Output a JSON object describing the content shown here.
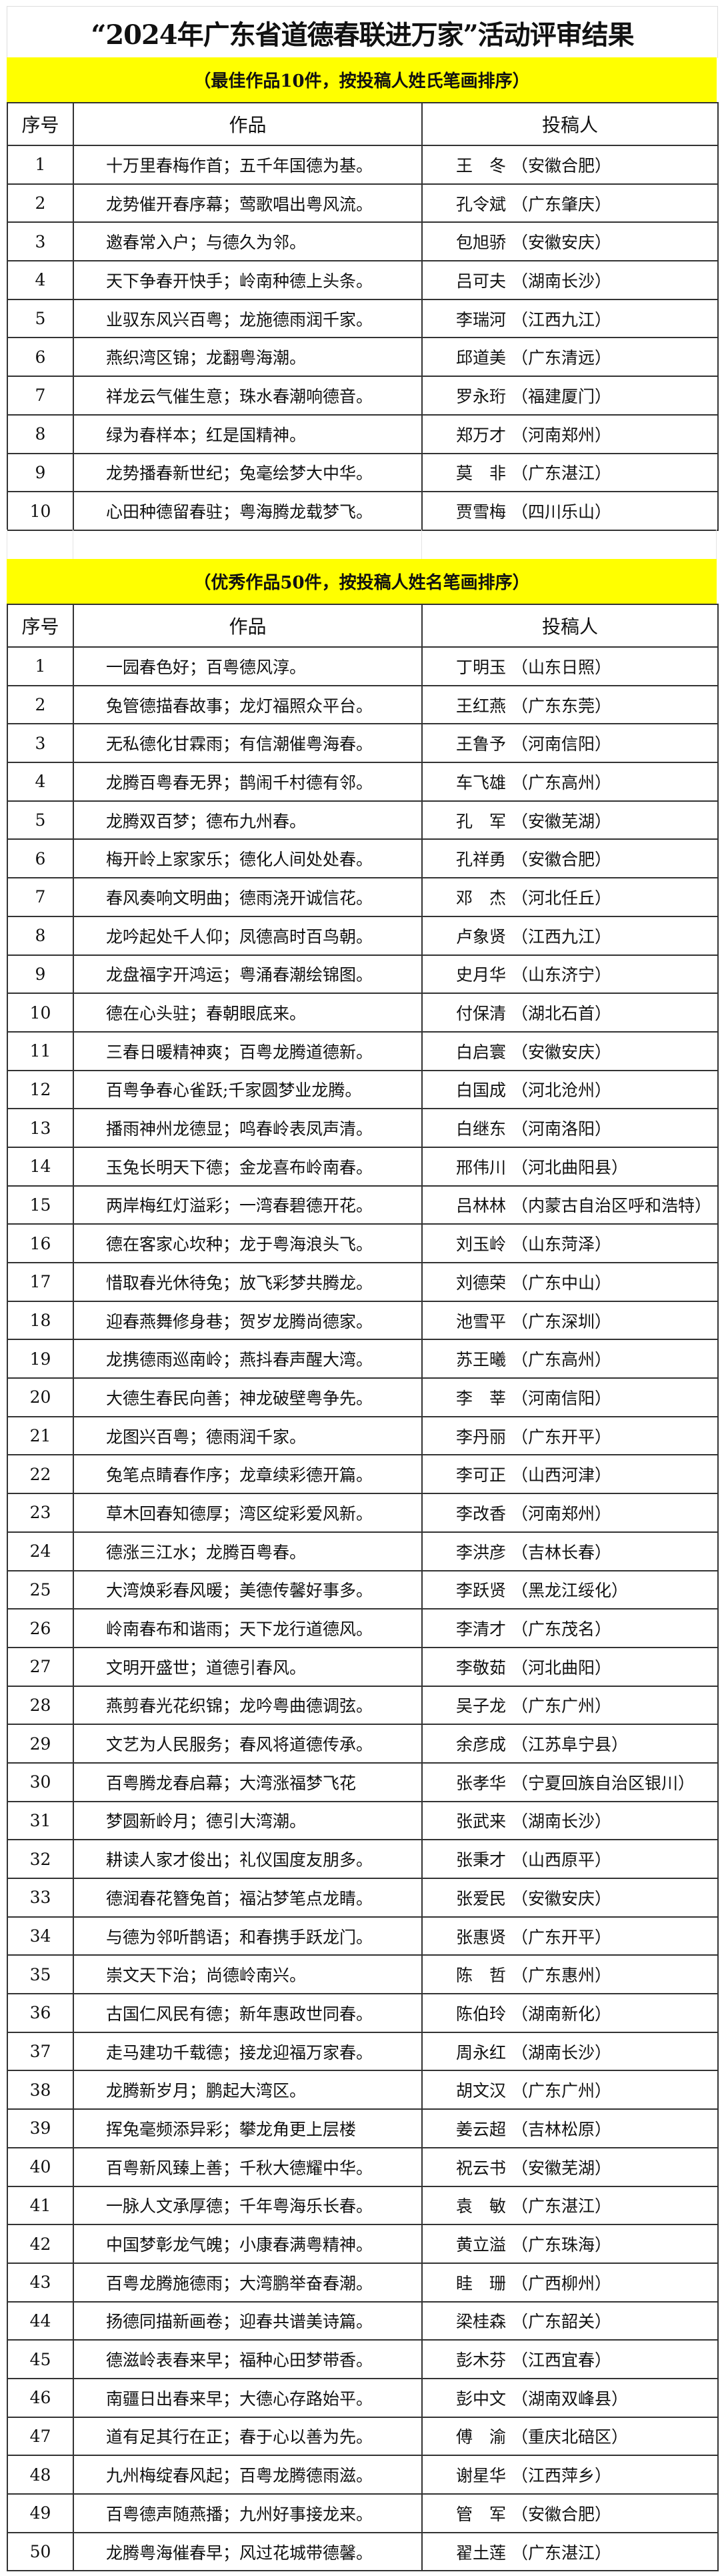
{
  "title": "“2024年广东省道德春联进万家”活动评审结果",
  "headers": {
    "no": "序号",
    "work": "作品",
    "author": "投稿人"
  },
  "colors": {
    "banner": "#ffff00"
  },
  "best": {
    "caption": "（最佳作品10件，按投稿人姓氏笔画排序）",
    "rows": [
      {
        "no": "1",
        "work": "十万里春梅作首；五千年国德为基。",
        "name": "王　冬",
        "region": "安徽合肥"
      },
      {
        "no": "2",
        "work": "龙势催开春序幕；莺歌唱出粤风流。",
        "name": "孔令斌",
        "region": "广东肇庆"
      },
      {
        "no": "3",
        "work": "邀春常入户；与德久为邻。",
        "name": "包旭骄",
        "region": "安徽安庆"
      },
      {
        "no": "4",
        "work": "天下争春开快手；岭南种德上头条。",
        "name": "吕可夫",
        "region": "湖南长沙"
      },
      {
        "no": "5",
        "work": "业驭东风兴百粤；龙施德雨润千家。",
        "name": "李瑞河",
        "region": "江西九江"
      },
      {
        "no": "6",
        "work": "燕织湾区锦；龙翻粤海潮。",
        "name": "邱道美",
        "region": "广东清远"
      },
      {
        "no": "7",
        "work": "祥龙云气催生意；珠水春潮响德音。",
        "name": "罗永珩",
        "region": "福建厦门"
      },
      {
        "no": "8",
        "work": "绿为春样本；红是国精神。",
        "name": "郑万才",
        "region": "河南郑州"
      },
      {
        "no": "9",
        "work": "龙势播春新世纪；兔毫绘梦大中华。",
        "name": "莫　非",
        "region": "广东湛江"
      },
      {
        "no": "10",
        "work": "心田种德留春驻；粤海腾龙载梦飞。",
        "name": "贾雪梅",
        "region": "四川乐山"
      }
    ]
  },
  "excellent": {
    "caption": "（优秀作品50件，按投稿人姓名笔画排序）",
    "rows": [
      {
        "no": "1",
        "work": "一园春色好；百粤德风淳。",
        "name": "丁明玉",
        "region": "山东日照"
      },
      {
        "no": "2",
        "work": "兔管德描春故事；龙灯福照众平台。",
        "name": "王红燕",
        "region": "广东东莞"
      },
      {
        "no": "3",
        "work": "无私德化甘霖雨；有信潮催粤海春。",
        "name": "王鲁予",
        "region": "河南信阳"
      },
      {
        "no": "4",
        "work": "龙腾百粤春无界；鹊闹千村德有邻。",
        "name": "车飞雄",
        "region": "广东高州"
      },
      {
        "no": "5",
        "work": "龙腾双百梦；德布九州春。",
        "name": "孔　军",
        "region": "安徽芜湖"
      },
      {
        "no": "6",
        "work": "梅开岭上家家乐；德化人间处处春。",
        "name": "孔祥勇",
        "region": "安徽合肥"
      },
      {
        "no": "7",
        "work": "春风奏响文明曲；德雨浇开诚信花。",
        "name": "邓　杰",
        "region": "河北任丘"
      },
      {
        "no": "8",
        "work": "龙吟起处千人仰；凤德高时百鸟朝。",
        "name": "卢象贤",
        "region": "江西九江"
      },
      {
        "no": "9",
        "work": "龙盘福字开鸿运；粤涌春潮绘锦图。",
        "name": "史月华",
        "region": "山东济宁"
      },
      {
        "no": "10",
        "work": "德在心头驻；春朝眼底来。",
        "name": "付保清",
        "region": "湖北石首"
      },
      {
        "no": "11",
        "work": "三春日暖精神爽；百粤龙腾道德新。",
        "name": "白启寰",
        "region": "安徽安庆"
      },
      {
        "no": "12",
        "work": "百粤争春心雀跃;千家圆梦业龙腾。",
        "name": "白国成",
        "region": "河北沧州"
      },
      {
        "no": "13",
        "work": "播雨神州龙德显；鸣春岭表凤声清。",
        "name": "白继东",
        "region": "河南洛阳"
      },
      {
        "no": "14",
        "work": "玉兔长明天下德；金龙喜布岭南春。",
        "name": "邢伟川",
        "region": "河北曲阳县"
      },
      {
        "no": "15",
        "work": "两岸梅红灯溢彩；一湾春碧德开花。",
        "name": "吕林林",
        "region": "内蒙古自治区呼和浩特"
      },
      {
        "no": "16",
        "work": "德在客家心坎种；龙于粤海浪头飞。",
        "name": "刘玉岭",
        "region": "山东菏泽"
      },
      {
        "no": "17",
        "work": "惜取春光休待兔；放飞彩梦共腾龙。",
        "name": "刘德荣",
        "region": "广东中山"
      },
      {
        "no": "18",
        "work": "迎春燕舞修身巷；贺岁龙腾尚德家。",
        "name": "池雪平",
        "region": "广东深圳"
      },
      {
        "no": "19",
        "work": "龙携德雨巡南岭；燕抖春声醒大湾。",
        "name": "苏王曦",
        "region": "广东高州"
      },
      {
        "no": "20",
        "work": "大德生春民向善；神龙破壁粤争先。",
        "name": "李　莘",
        "region": "河南信阳"
      },
      {
        "no": "21",
        "work": "龙图兴百粤；德雨润千家。",
        "name": "李丹丽",
        "region": "广东开平"
      },
      {
        "no": "22",
        "work": "兔笔点睛春作序；龙章续彩德开篇。",
        "name": "李可正",
        "region": "山西河津"
      },
      {
        "no": "23",
        "work": "草木回春知德厚；湾区绽彩爱风新。",
        "name": "李改香",
        "region": "河南郑州"
      },
      {
        "no": "24",
        "work": "德涨三江水；龙腾百粤春。",
        "name": "李洪彦",
        "region": "吉林长春"
      },
      {
        "no": "25",
        "work": "大湾焕彩春风暖；美德传馨好事多。",
        "name": "李跃贤",
        "region": "黑龙江绥化"
      },
      {
        "no": "26",
        "work": "岭南春布和谐雨；天下龙行道德风。",
        "name": "李清才",
        "region": "广东茂名"
      },
      {
        "no": "27",
        "work": "文明开盛世；道德引春风。",
        "name": "李敬茹",
        "region": "河北曲阳"
      },
      {
        "no": "28",
        "work": "燕剪春光花织锦；龙吟粤曲德调弦。",
        "name": "吴子龙",
        "region": "广东广州"
      },
      {
        "no": "29",
        "work": "文艺为人民服务；春风将道德传承。",
        "name": "余彦成",
        "region": "江苏阜宁县"
      },
      {
        "no": "30",
        "work": "百粤腾龙春启幕；大湾涨福梦飞花",
        "name": "张孝华",
        "region": "宁夏回族自治区银川"
      },
      {
        "no": "31",
        "work": "梦圆新岭月；德引大湾潮。",
        "name": "张武来",
        "region": "湖南长沙"
      },
      {
        "no": "32",
        "work": "耕读人家才俊出；礼仪国度友朋多。",
        "name": "张秉才",
        "region": "山西原平"
      },
      {
        "no": "33",
        "work": "德润春花簪兔首；福沾梦笔点龙睛。",
        "name": "张爱民",
        "region": "安徽安庆"
      },
      {
        "no": "34",
        "work": "与德为邻听鹊语；和春携手跃龙门。",
        "name": "张惠贤",
        "region": "广东开平"
      },
      {
        "no": "35",
        "work": "崇文天下治；尚德岭南兴。",
        "name": "陈　哲",
        "region": "广东惠州"
      },
      {
        "no": "36",
        "work": "古国仁风民有德；新年惠政世同春。",
        "name": "陈伯玲",
        "region": "湖南新化"
      },
      {
        "no": "37",
        "work": "走马建功千载德；接龙迎福万家春。",
        "name": "周永红",
        "region": "湖南长沙"
      },
      {
        "no": "38",
        "work": "龙腾新岁月；鹏起大湾区。",
        "name": "胡文汉",
        "region": "广东广州"
      },
      {
        "no": "39",
        "work": "挥兔毫频添异彩；攀龙角更上层楼",
        "name": "姜云超",
        "region": "吉林松原"
      },
      {
        "no": "40",
        "work": "百粤新风臻上善；千秋大德耀中华。",
        "name": "祝云书",
        "region": "安徽芜湖"
      },
      {
        "no": "41",
        "work": "一脉人文承厚德；千年粤海乐长春。",
        "name": "袁　敏",
        "region": "广东湛江"
      },
      {
        "no": "42",
        "work": "中国梦彰龙气魄；小康春满粤精神。",
        "name": "黄立溢",
        "region": "广东珠海"
      },
      {
        "no": "43",
        "work": "百粤龙腾施德雨；大湾鹏举奋春潮。",
        "name": "眭　珊",
        "region": "广西柳州"
      },
      {
        "no": "44",
        "work": "扬德同描新画卷；迎春共谱美诗篇。",
        "name": "梁桂森",
        "region": "广东韶关"
      },
      {
        "no": "45",
        "work": "德滋岭表春来早；福种心田梦带香。",
        "name": "彭木芬",
        "region": "江西宜春"
      },
      {
        "no": "46",
        "work": "南疆日出春来早；大德心存路始平。",
        "name": "彭中文",
        "region": "湖南双峰县"
      },
      {
        "no": "47",
        "work": "道有足其行在正；春于心以善为先。",
        "name": "傅　渝",
        "region": "重庆北碚区"
      },
      {
        "no": "48",
        "work": "九州梅绽春风起；百粤龙腾德雨滋。",
        "name": "谢星华",
        "region": "江西萍乡"
      },
      {
        "no": "49",
        "work": "百粤德声随燕播；九州好事接龙来。",
        "name": "管　军",
        "region": "安徽合肥"
      },
      {
        "no": "50",
        "work": "龙腾粤海催春早；风过花城带德馨。",
        "name": "翟土莲",
        "region": "广东湛江"
      }
    ]
  }
}
